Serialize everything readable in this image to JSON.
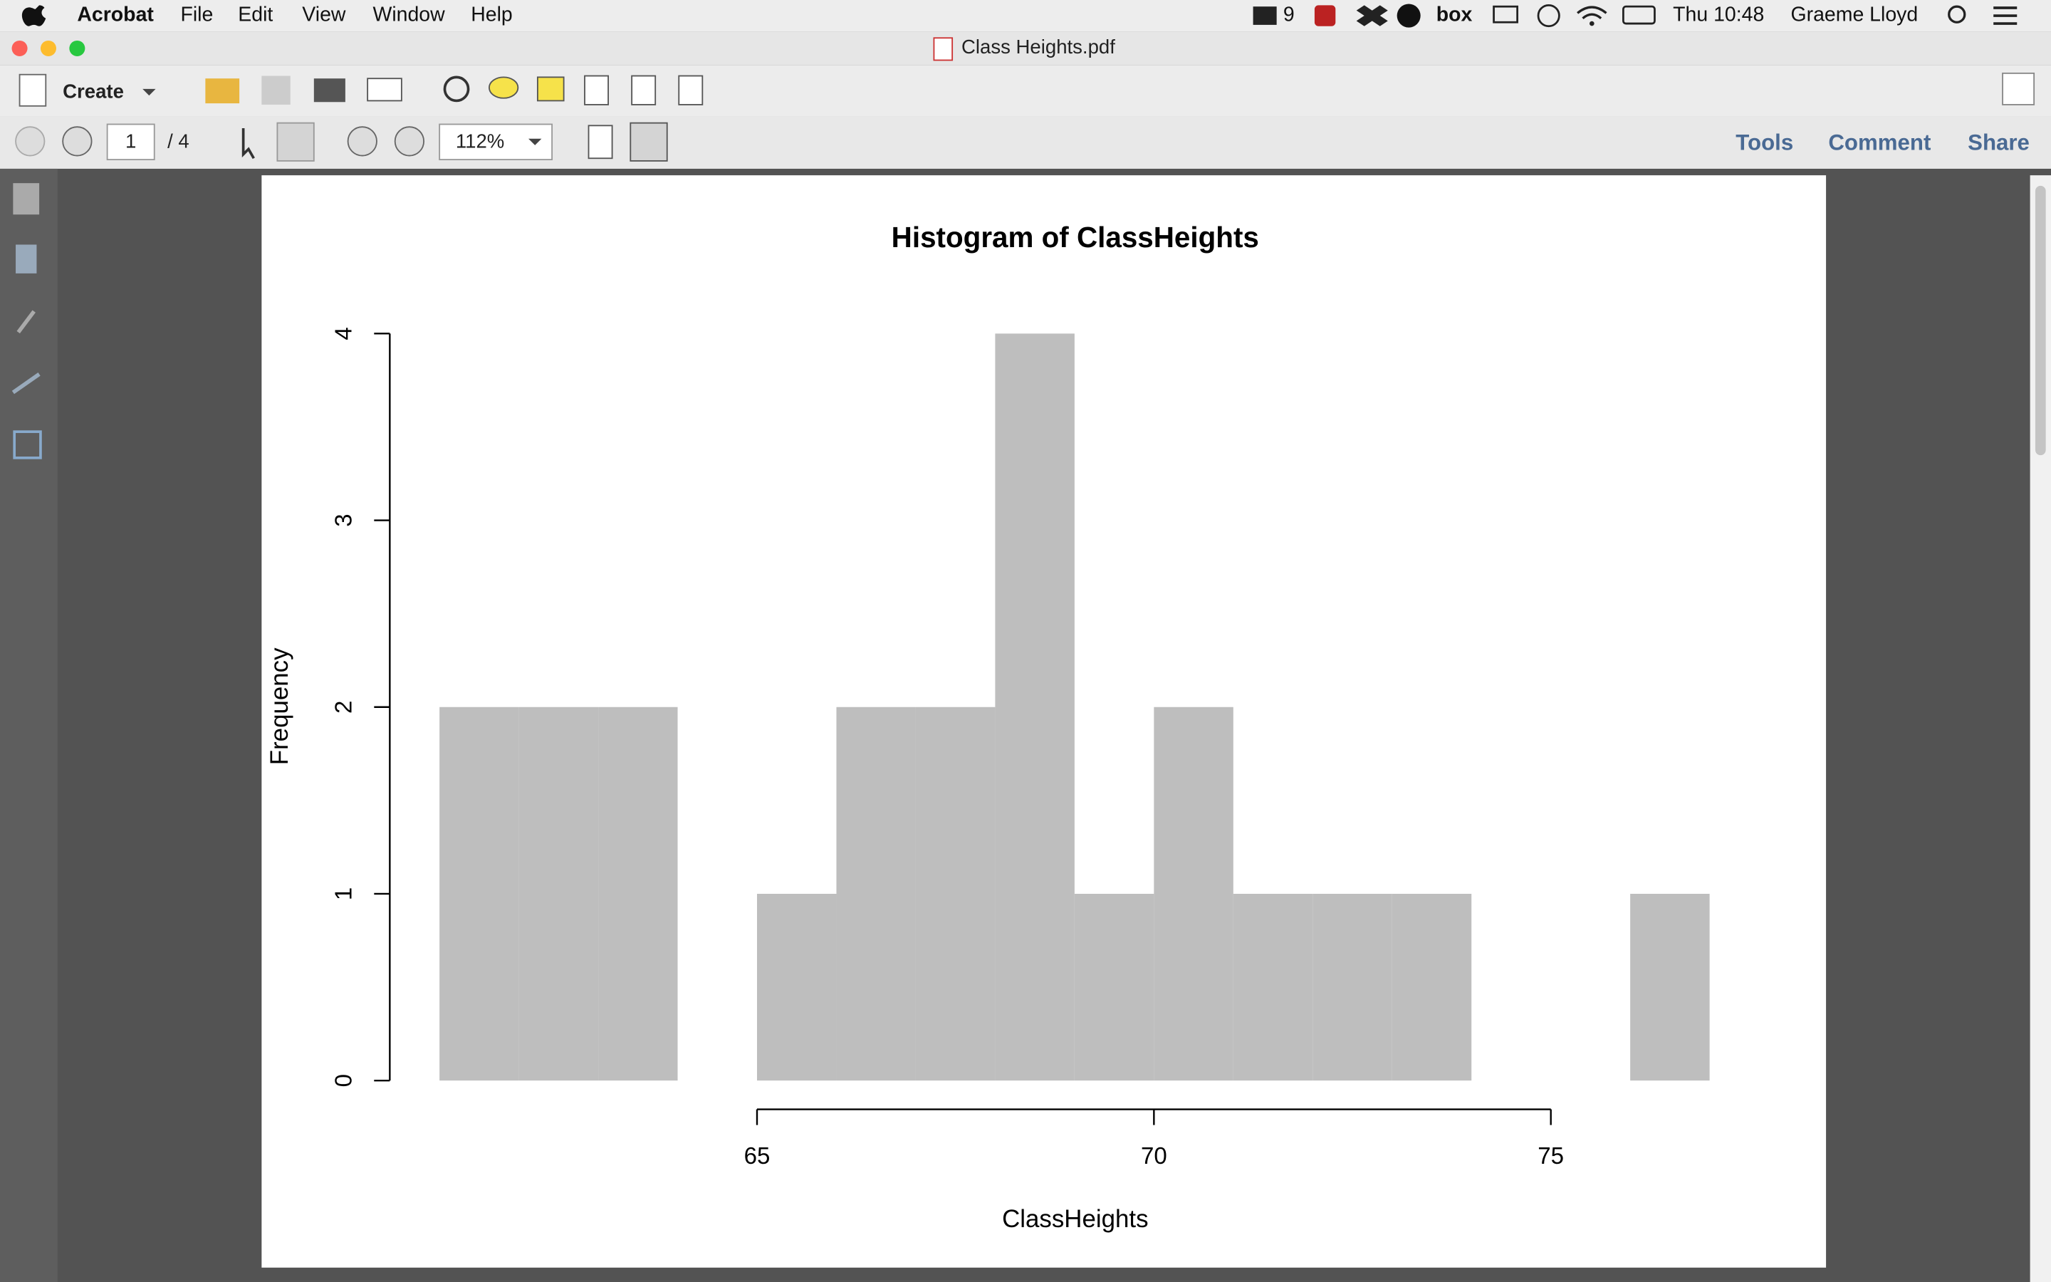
{
  "menu_bar": {
    "app": "Acrobat",
    "items": [
      "File",
      "Edit",
      "View",
      "Window",
      "Help"
    ],
    "status": {
      "adobe_count": "9",
      "box": "box",
      "clock": "Thu 10:48",
      "user": "Graeme Lloyd"
    }
  },
  "window": {
    "title": "Class Heights.pdf"
  },
  "toolbar": {
    "create": "Create",
    "page": "1",
    "page_total": "/ 4",
    "zoom": "112%",
    "tabs": [
      "Tools",
      "Comment",
      "Share"
    ]
  },
  "chart_data": {
    "type": "histogram",
    "title": "Histogram of ClassHeights",
    "x_label": "ClassHeights",
    "y_label": "Frequency",
    "bins": [
      61,
      62,
      63,
      64,
      65,
      66,
      67,
      68,
      69,
      70,
      71,
      72,
      73,
      74,
      75,
      76,
      77
    ],
    "counts": [
      2,
      2,
      2,
      0,
      1,
      2,
      2,
      4,
      1,
      2,
      1,
      1,
      1,
      0,
      0,
      1
    ],
    "color": "#bebebe",
    "xlim": [
      61,
      77
    ],
    "xticks": [
      65,
      70,
      75
    ],
    "ylim": [
      0,
      4
    ],
    "yticks": [
      0,
      1,
      2,
      3,
      4
    ]
  }
}
